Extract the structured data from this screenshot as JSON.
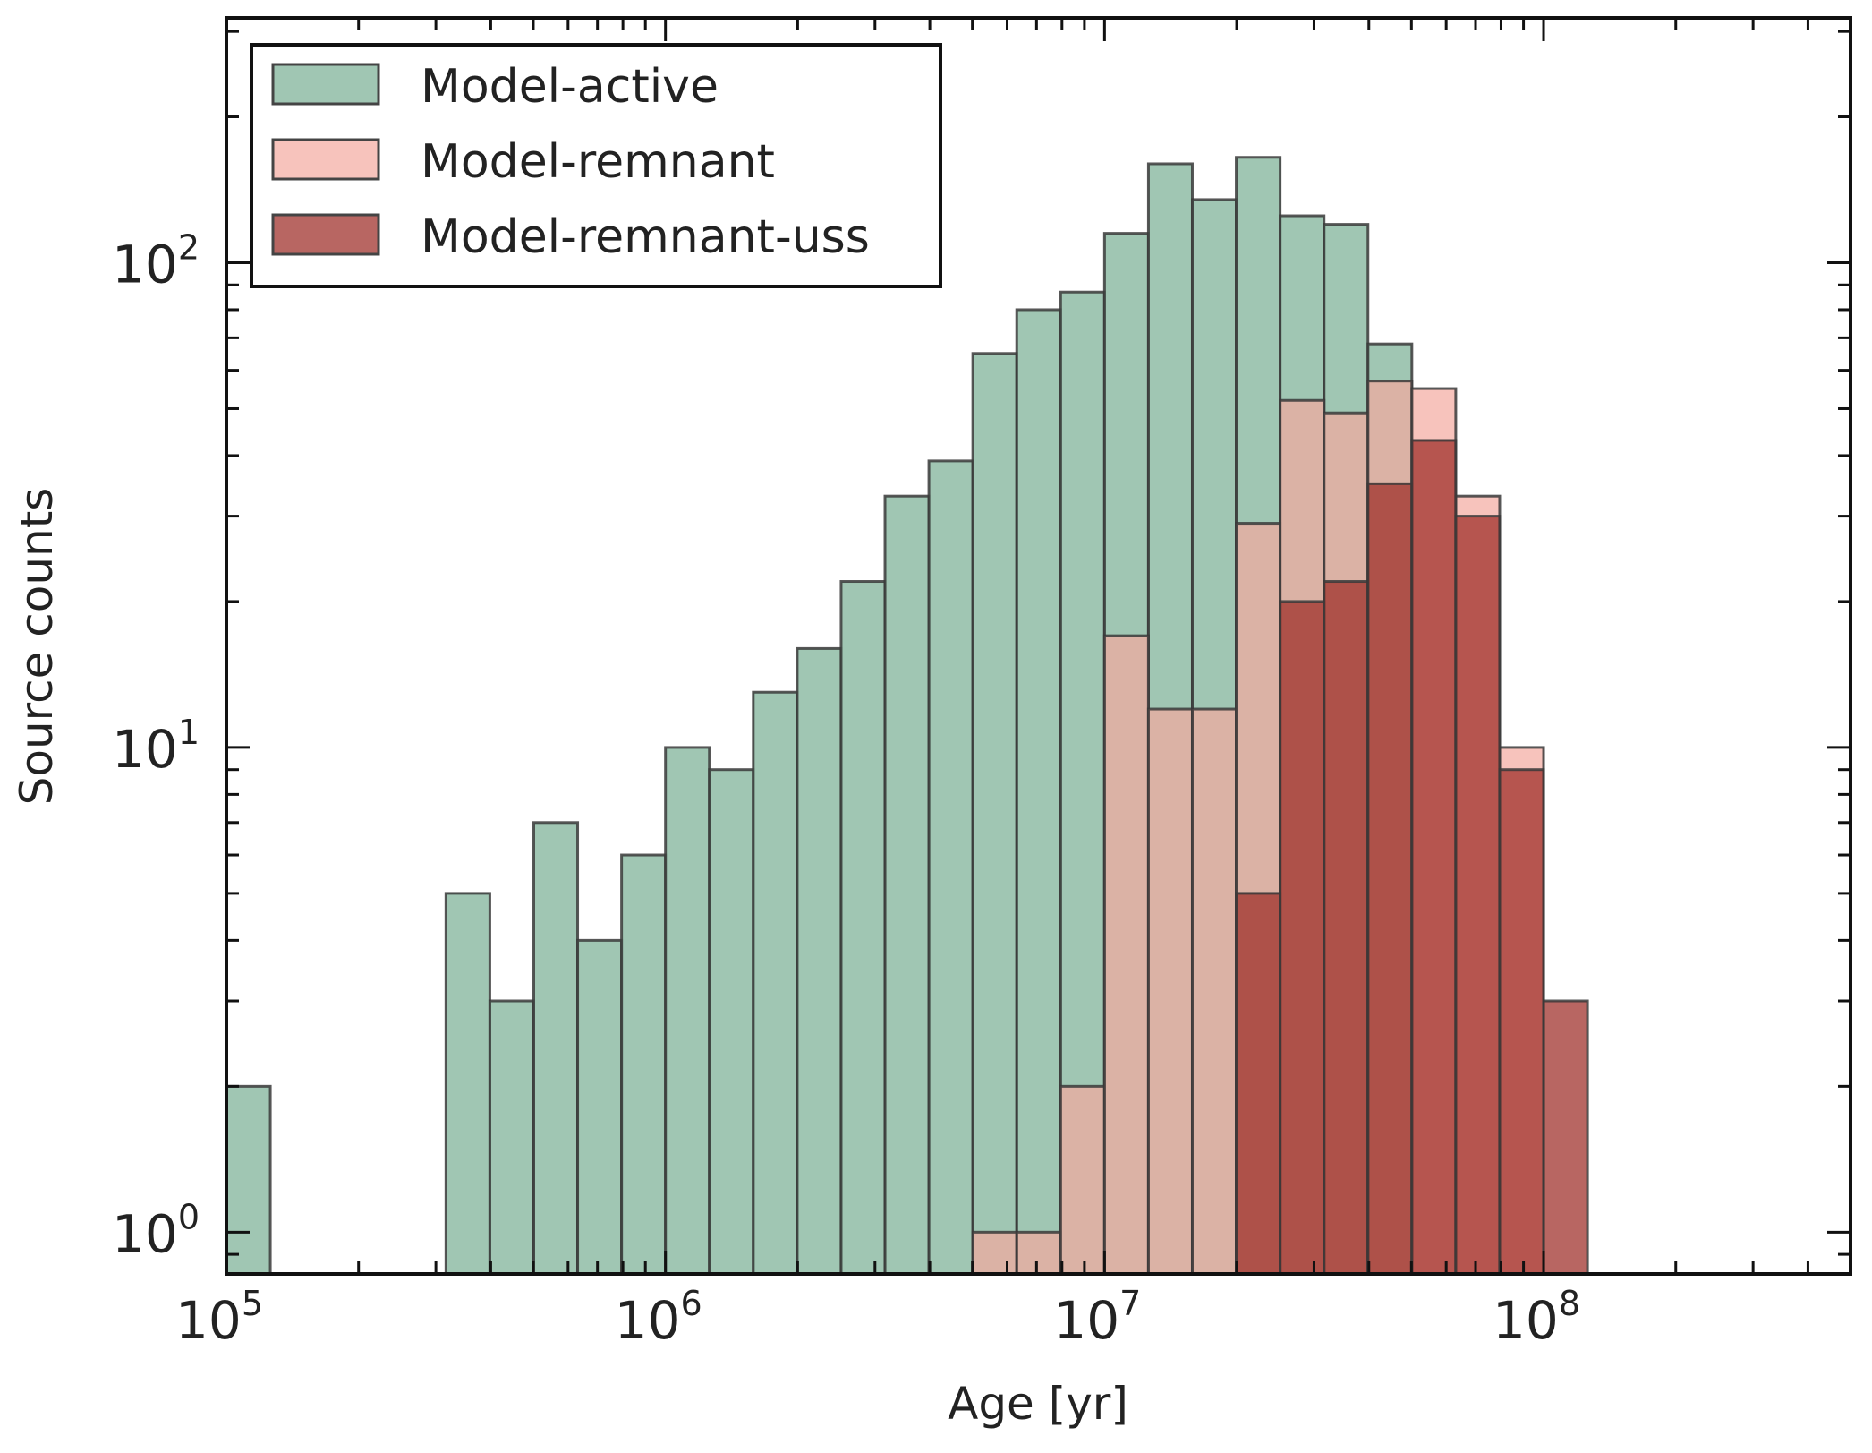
{
  "chart_data": {
    "type": "bar",
    "xscale": "log",
    "yscale": "log",
    "xlabel": "Age [yr]",
    "ylabel": "Source counts",
    "xlim": [
      100000,
      500000000
    ],
    "ylim": [
      0.82,
      320
    ],
    "x_ticks": [
      {
        "base": "10",
        "exp": "5",
        "value": 100000
      },
      {
        "base": "10",
        "exp": "6",
        "value": 1000000
      },
      {
        "base": "10",
        "exp": "7",
        "value": 10000000
      },
      {
        "base": "10",
        "exp": "8",
        "value": 100000000
      }
    ],
    "y_ticks": [
      {
        "base": "10",
        "exp": "0",
        "value": 1
      },
      {
        "base": "10",
        "exp": "1",
        "value": 10
      },
      {
        "base": "10",
        "exp": "2",
        "value": 100
      }
    ],
    "bins": {
      "log_start": 5.0,
      "log_width": 0.1
    },
    "series": [
      {
        "name": "Model-active",
        "color": "#80b39a",
        "opacity": 0.75,
        "values": [
          2,
          0,
          0,
          0,
          0,
          5,
          3,
          7,
          4,
          6,
          10,
          9,
          13,
          16,
          22,
          33,
          39,
          65,
          80,
          87,
          115,
          160,
          135,
          165,
          125,
          120,
          68,
          0,
          0,
          0,
          0,
          0
        ]
      },
      {
        "name": "Model-remnant",
        "color": "#f4a9a0",
        "opacity": 0.7,
        "values": [
          0,
          0,
          0,
          0,
          0,
          0,
          0,
          0,
          0,
          0,
          0,
          0,
          0,
          0,
          0,
          0,
          0,
          1,
          1,
          2,
          17,
          12,
          12,
          29,
          52,
          49,
          57,
          55,
          33,
          10,
          0,
          0
        ]
      },
      {
        "name": "Model-remnant-uss",
        "color": "#9c2b26",
        "opacity": 0.72,
        "values": [
          0,
          0,
          0,
          0,
          0,
          0,
          0,
          0,
          0,
          0,
          0,
          0,
          0,
          0,
          0,
          0,
          0,
          0,
          0,
          0,
          0,
          0,
          0,
          5,
          20,
          22,
          35,
          43,
          30,
          9,
          3,
          0
        ]
      }
    ],
    "legend_position": "top-left"
  }
}
